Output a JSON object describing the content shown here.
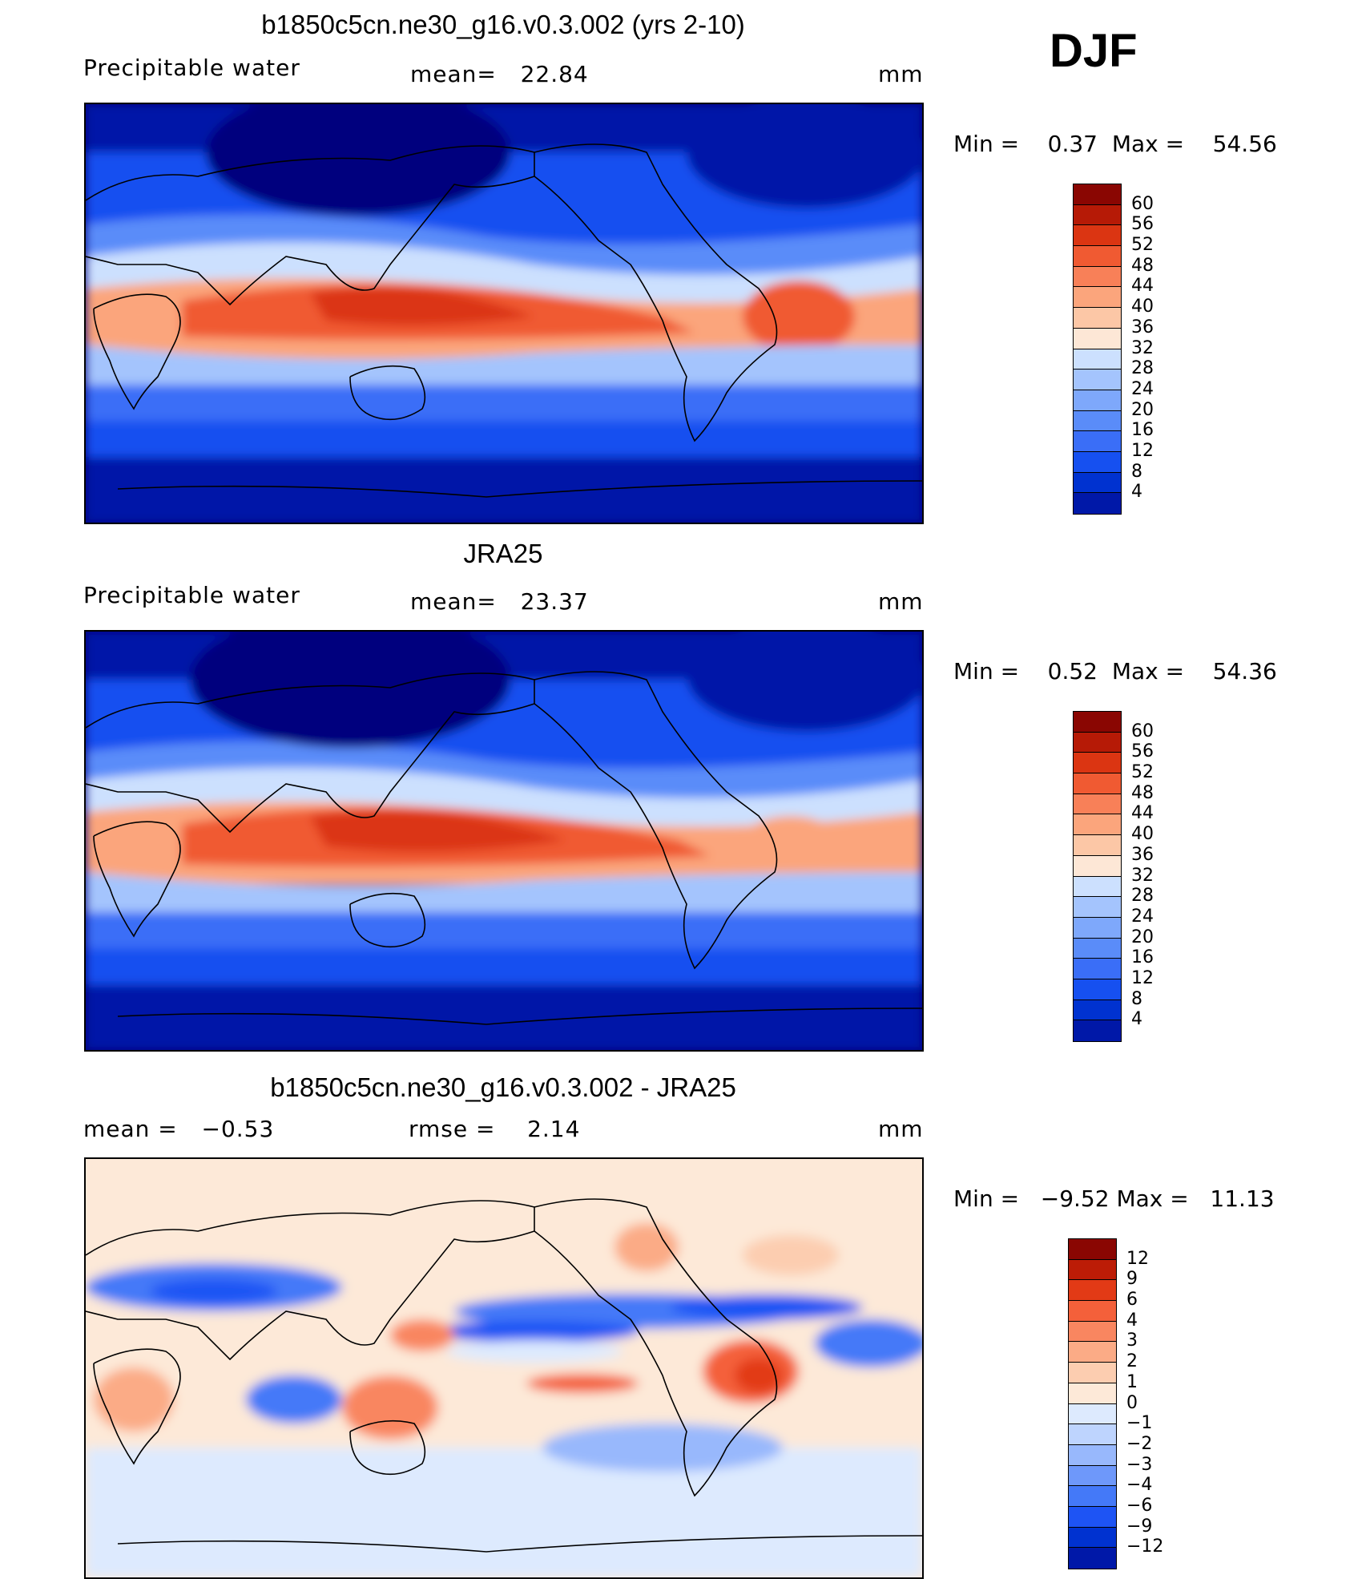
{
  "season": "DJF",
  "colors": {
    "abs_scale": [
      "#02007e",
      "#0018a8",
      "#0032d0",
      "#1650f0",
      "#3a6ef7",
      "#5a8cf9",
      "#7ea8fb",
      "#a4c4fd",
      "#cce0fe",
      "#fde7d6",
      "#fcc7a6",
      "#fba57c",
      "#f88058",
      "#f05a32",
      "#db3512",
      "#b61a06",
      "#8a0602"
    ],
    "diff_scale": [
      "#02007e",
      "#0018a8",
      "#0032d0",
      "#1e54f4",
      "#4479f8",
      "#6e98fa",
      "#98b8fc",
      "#bed4fe",
      "#ddeafe",
      "#fde9d8",
      "#fccdb0",
      "#fbab86",
      "#f98660",
      "#f4603a",
      "#e23a16",
      "#bc1c06",
      "#8a0602"
    ]
  },
  "chart_data": [
    {
      "type": "heatmap",
      "title": "b1850c5cn.ne30_g16.v0.3.002 (yrs 2-10)",
      "variable": "Precipitable water",
      "mean_label": "mean=",
      "mean_value": "22.84",
      "units": "mm",
      "min_label": "Min =",
      "min_value": "0.37",
      "max_label": "Max =",
      "max_value": "54.56",
      "colorbar_levels": [
        "60",
        "56",
        "52",
        "48",
        "44",
        "40",
        "36",
        "32",
        "28",
        "24",
        "20",
        "16",
        "12",
        "8",
        "4"
      ]
    },
    {
      "type": "heatmap",
      "title": "JRA25",
      "variable": "Precipitable water",
      "mean_label": "mean=",
      "mean_value": "23.37",
      "units": "mm",
      "min_label": "Min =",
      "min_value": "0.52",
      "max_label": "Max =",
      "max_value": "54.36",
      "colorbar_levels": [
        "60",
        "56",
        "52",
        "48",
        "44",
        "40",
        "36",
        "32",
        "28",
        "24",
        "20",
        "16",
        "12",
        "8",
        "4"
      ]
    },
    {
      "type": "heatmap",
      "title": "b1850c5cn.ne30_g16.v0.3.002 - JRA25",
      "mean_label": "mean =",
      "mean_value": "−0.53",
      "rmse_label": "rmse =",
      "rmse_value": "2.14",
      "units": "mm",
      "min_label": "Min =",
      "min_value": "−9.52",
      "max_label": "Max =",
      "max_value": "11.13",
      "colorbar_levels": [
        "12",
        "9",
        "6",
        "4",
        "3",
        "2",
        "1",
        "0",
        "−1",
        "−2",
        "−3",
        "−4",
        "−6",
        "−9",
        "−12"
      ]
    }
  ]
}
